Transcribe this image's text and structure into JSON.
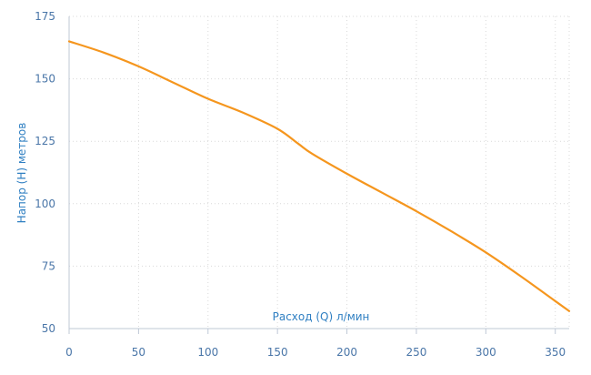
{
  "chart_data": {
    "type": "line",
    "title": "",
    "xlabel": "Расход (Q) л/мин",
    "ylabel": "Напор (H) метров",
    "xlim": [
      0,
      360
    ],
    "ylim": [
      50,
      175
    ],
    "x_ticks": [
      0,
      50,
      100,
      150,
      200,
      250,
      300,
      350
    ],
    "y_ticks": [
      50,
      75,
      100,
      125,
      150,
      175
    ],
    "grid": true,
    "series": [
      {
        "color": "#f5961e",
        "x": [
          0,
          25,
          50,
          75,
          100,
          125,
          150,
          165,
          175,
          200,
          225,
          250,
          275,
          300,
          325,
          350,
          360
        ],
        "y": [
          165,
          160.5,
          155,
          148.5,
          142,
          136.5,
          130,
          124,
          120,
          112,
          104.5,
          97,
          89,
          80.5,
          71,
          61,
          57
        ]
      }
    ]
  },
  "colors": {
    "line": "#f5961e",
    "tick_text": "#4a76a8",
    "axis_title": "#2f7fc2",
    "grid": "#d9d9d9",
    "axis": "#bfc8d6"
  }
}
